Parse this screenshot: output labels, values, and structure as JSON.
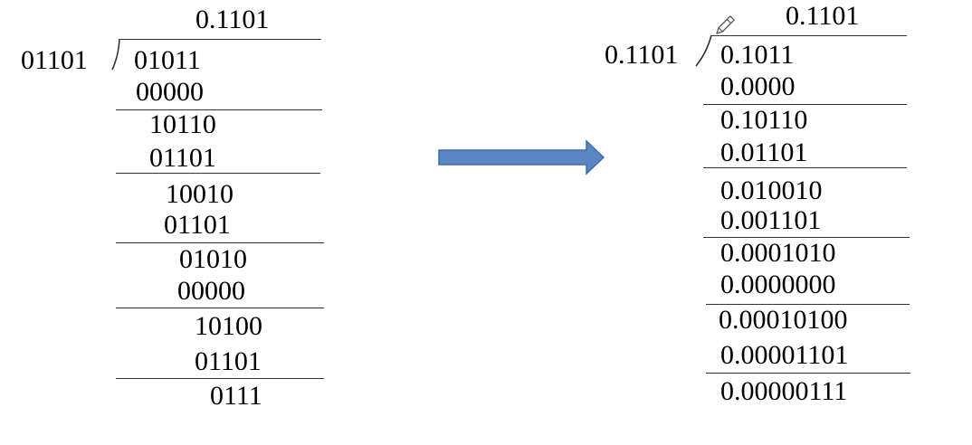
{
  "left": {
    "quotient": "0.1101",
    "divisor": "01101",
    "dividend": "01011",
    "steps": [
      "00000",
      "10110",
      "01101",
      "10010",
      "01101",
      "01010",
      "00000",
      "10100",
      "01101"
    ],
    "remainder": "0111"
  },
  "right": {
    "quotient": "0.1101",
    "divisor": "0.1101",
    "dividend": "0.1011",
    "steps": [
      "0.0000",
      "0.10110",
      "0.01101",
      "0.010010",
      "0.001101",
      "0.0001010",
      "0.0000000",
      "0.00010100",
      "0.00001101"
    ],
    "remainder": "0.00000111"
  },
  "arrow": {
    "color": "#5b86c4",
    "edge_color": "#3d6aa8",
    "direction": "right"
  }
}
